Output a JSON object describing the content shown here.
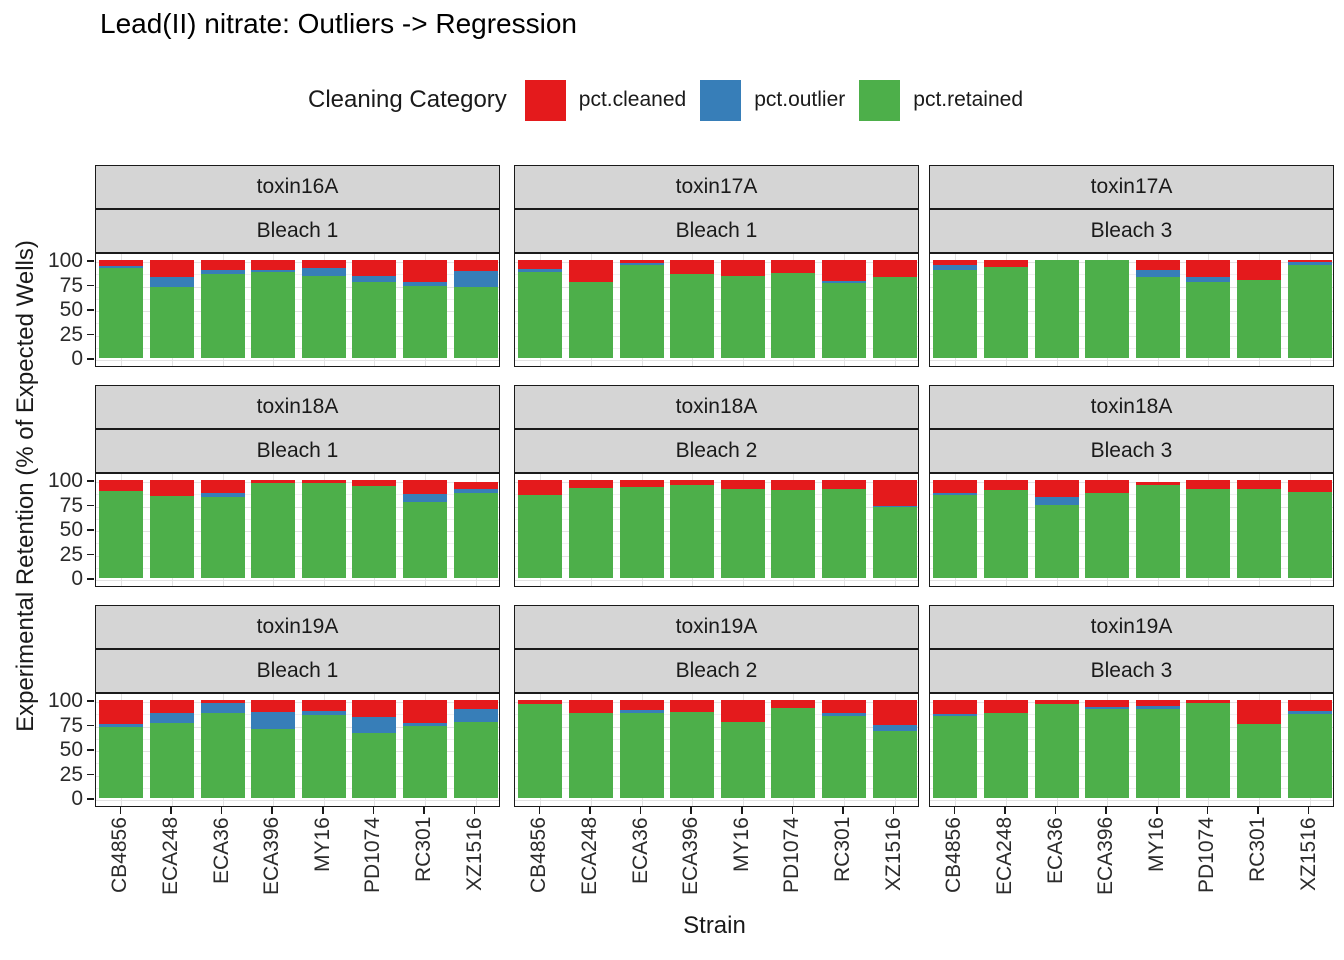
{
  "title": "Lead(II) nitrate: Outliers -> Regression",
  "legend": {
    "title": "Cleaning Category",
    "position": "top",
    "entries": [
      {
        "label": "pct.cleaned",
        "color": "#E41A1C"
      },
      {
        "label": "pct.outlier",
        "color": "#377EB8"
      },
      {
        "label": "pct.retained",
        "color": "#4DAF4A"
      }
    ]
  },
  "axes": {
    "x_title": "Strain",
    "y_title": "Experimental Retention (% of Expected Wells)",
    "y_ticks": [
      0,
      25,
      50,
      75,
      100
    ],
    "y_minor_ticks": [
      12.5,
      37.5,
      62.5,
      87.5
    ],
    "ylim": [
      0,
      100
    ]
  },
  "chart_data": {
    "type": "bar",
    "stacking": "stack",
    "grid": "on",
    "facet": {
      "rows": 3,
      "cols": 3,
      "strip_top": "toxin",
      "strip_bottom": "bleach"
    },
    "categories": [
      "CB4856",
      "ECA248",
      "ECA36",
      "ECA396",
      "MY16",
      "PD1074",
      "RC301",
      "XZ1516"
    ],
    "panels": [
      {
        "row": 0,
        "col": 0,
        "toxin": "toxin16A",
        "bleach": "Bleach 1",
        "series": {
          "pct.cleaned": [
            6,
            17,
            10,
            10,
            8,
            16,
            22,
            11
          ],
          "pct.outlier": [
            2,
            10,
            4,
            2,
            8,
            6,
            4,
            16
          ],
          "pct.retained": [
            92,
            73,
            86,
            88,
            84,
            78,
            74,
            73
          ]
        }
      },
      {
        "row": 0,
        "col": 1,
        "toxin": "toxin17A",
        "bleach": "Bleach 1",
        "series": {
          "pct.cleaned": [
            9,
            22,
            3,
            14,
            16,
            13,
            21,
            17
          ],
          "pct.outlier": [
            3,
            0,
            2,
            0,
            0,
            0,
            2,
            0
          ],
          "pct.retained": [
            88,
            78,
            95,
            86,
            84,
            87,
            77,
            83
          ]
        }
      },
      {
        "row": 0,
        "col": 2,
        "toxin": "toxin17A",
        "bleach": "Bleach 3",
        "series": {
          "pct.cleaned": [
            5,
            7,
            0,
            0,
            10,
            17,
            20,
            2
          ],
          "pct.outlier": [
            5,
            0,
            0,
            0,
            7,
            5,
            0,
            3
          ],
          "pct.retained": [
            90,
            93,
            100,
            100,
            83,
            78,
            80,
            95
          ]
        }
      },
      {
        "row": 1,
        "col": 0,
        "toxin": "toxin18A",
        "bleach": "Bleach 1",
        "series": {
          "pct.cleaned": [
            11,
            16,
            13,
            3,
            3,
            6,
            14,
            7
          ],
          "pct.outlier": [
            0,
            0,
            4,
            0,
            0,
            0,
            8,
            4
          ],
          "pct.retained": [
            89,
            84,
            83,
            97,
            97,
            94,
            78,
            87
          ]
        }
      },
      {
        "row": 1,
        "col": 1,
        "toxin": "toxin18A",
        "bleach": "Bleach 2",
        "series": {
          "pct.cleaned": [
            15,
            8,
            7,
            5,
            9,
            10,
            9,
            26
          ],
          "pct.outlier": [
            0,
            0,
            0,
            0,
            0,
            0,
            0,
            2
          ],
          "pct.retained": [
            85,
            92,
            93,
            95,
            91,
            90,
            91,
            72
          ]
        }
      },
      {
        "row": 1,
        "col": 2,
        "toxin": "toxin18A",
        "bleach": "Bleach 3",
        "series": {
          "pct.cleaned": [
            13,
            10,
            17,
            13,
            3,
            9,
            9,
            12
          ],
          "pct.outlier": [
            2,
            0,
            8,
            0,
            0,
            0,
            0,
            0
          ],
          "pct.retained": [
            85,
            90,
            75,
            87,
            95,
            91,
            91,
            88
          ]
        }
      },
      {
        "row": 2,
        "col": 0,
        "toxin": "toxin19A",
        "bleach": "Bleach 1",
        "series": {
          "pct.cleaned": [
            24,
            13,
            3,
            12,
            11,
            17,
            23,
            9
          ],
          "pct.outlier": [
            3,
            10,
            10,
            18,
            4,
            17,
            3,
            13
          ],
          "pct.retained": [
            73,
            77,
            87,
            70,
            85,
            66,
            74,
            78
          ]
        }
      },
      {
        "row": 2,
        "col": 1,
        "toxin": "toxin19A",
        "bleach": "Bleach 2",
        "series": {
          "pct.cleaned": [
            4,
            13,
            10,
            12,
            22,
            8,
            13,
            25
          ],
          "pct.outlier": [
            0,
            0,
            3,
            0,
            0,
            0,
            3,
            7
          ],
          "pct.retained": [
            96,
            87,
            87,
            88,
            78,
            92,
            84,
            68
          ]
        }
      },
      {
        "row": 2,
        "col": 2,
        "toxin": "toxin19A",
        "bleach": "Bleach 3",
        "series": {
          "pct.cleaned": [
            14,
            13,
            4,
            7,
            6,
            3,
            24,
            11
          ],
          "pct.outlier": [
            2,
            0,
            0,
            2,
            3,
            0,
            0,
            3
          ],
          "pct.retained": [
            84,
            87,
            96,
            91,
            91,
            97,
            76,
            86
          ]
        }
      }
    ]
  }
}
